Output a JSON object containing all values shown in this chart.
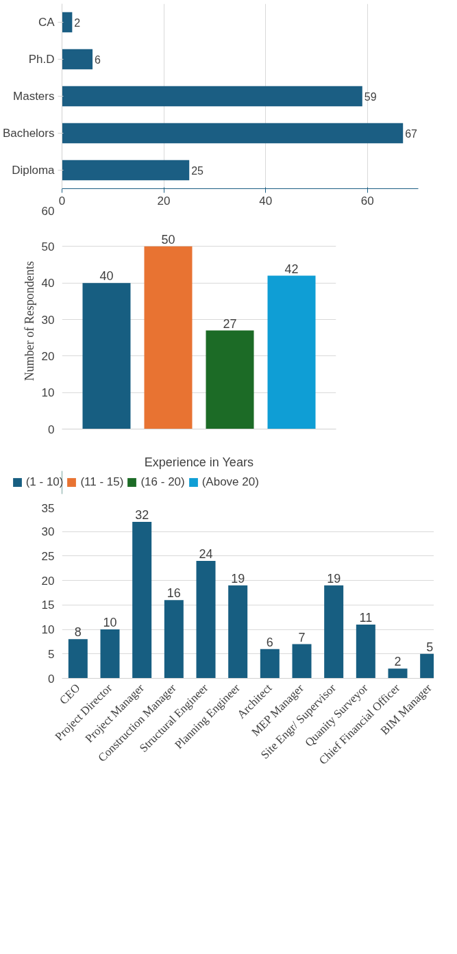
{
  "chart_data": [
    {
      "type": "bar",
      "orientation": "horizontal",
      "categories": [
        "CA",
        "Ph.D",
        "Masters",
        "Bachelors",
        "Diploma"
      ],
      "values": [
        2,
        6,
        59,
        67,
        25
      ],
      "color": "#1b5e83",
      "xlim": [
        0,
        70
      ],
      "xticks": [
        0,
        20,
        40,
        60
      ],
      "grid": "x",
      "data_labels": true
    },
    {
      "type": "bar",
      "categories": [
        null
      ],
      "xlabel": "Experience in Years",
      "ylabel": "Number  of Respondents",
      "ylim": [
        0,
        60
      ],
      "yticks": [
        0,
        10,
        20,
        30,
        40,
        50,
        60
      ],
      "grid": "y",
      "data_labels": true,
      "legend": "bottom",
      "series": [
        {
          "name": "(1 - 10)",
          "color": "#175e81",
          "values": [
            40
          ]
        },
        {
          "name": "(11 - 15)",
          "color": "#e87332",
          "values": [
            50
          ]
        },
        {
          "name": "(16 - 20)",
          "color": "#1c6b26",
          "values": [
            27
          ]
        },
        {
          "name": "(Above 20)",
          "color": "#0f9ed5",
          "values": [
            42
          ]
        }
      ]
    },
    {
      "type": "bar",
      "categories": [
        "CEO",
        "Project Director",
        "Project Manager",
        "Construction Manager",
        "Structural Engineer",
        "Planning Engineer",
        "Architect",
        "MEP Manager",
        "Site Engr/ Supervisor",
        "Quanity Surveyor",
        "Chief Financial Officer",
        "BIM Manager"
      ],
      "values": [
        8,
        10,
        32,
        16,
        24,
        19,
        6,
        7,
        19,
        11,
        2,
        5
      ],
      "color": "#175e81",
      "ylim": [
        0,
        35
      ],
      "yticks": [
        0,
        5,
        10,
        15,
        20,
        25,
        30,
        35
      ],
      "grid": "y",
      "data_labels": true
    }
  ]
}
